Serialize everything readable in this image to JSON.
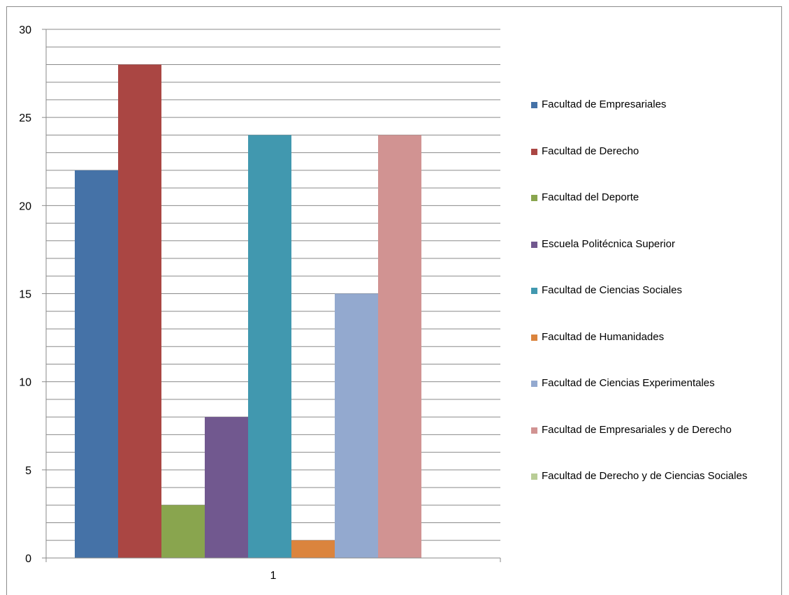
{
  "chart_data": {
    "type": "bar",
    "categories": [
      "1"
    ],
    "ylim": [
      0,
      30
    ],
    "y_ticks": [
      0,
      5,
      10,
      15,
      20,
      25,
      30
    ],
    "grid": true,
    "legend_position": "right",
    "series": [
      {
        "name": "Facultad de Empresariales",
        "values": [
          22
        ],
        "color": "#4572a7"
      },
      {
        "name": "Facultad de Derecho",
        "values": [
          28
        ],
        "color": "#aa4643"
      },
      {
        "name": "Facultad del Deporte",
        "values": [
          3
        ],
        "color": "#89a54e"
      },
      {
        "name": "Escuela Politécnica Superior",
        "values": [
          8
        ],
        "color": "#71588f"
      },
      {
        "name": "Facultad de Ciencias Sociales",
        "values": [
          24
        ],
        "color": "#4198af"
      },
      {
        "name": "Facultad de Humanidades",
        "values": [
          1
        ],
        "color": "#db843d"
      },
      {
        "name": "Facultad de Ciencias Experimentales",
        "values": [
          15
        ],
        "color": "#93a9cf"
      },
      {
        "name": "Facultad de Empresariales y de Derecho",
        "values": [
          24
        ],
        "color": "#d19392"
      },
      {
        "name": "Facultad de Derecho y de Ciencias Sociales",
        "values": [
          0
        ],
        "color": "#b9cd96"
      }
    ]
  }
}
